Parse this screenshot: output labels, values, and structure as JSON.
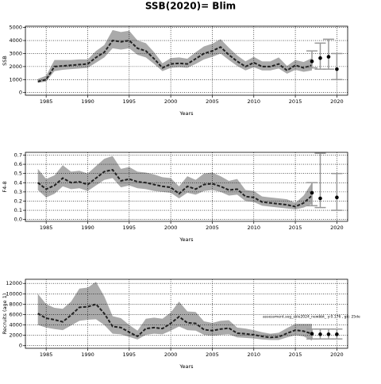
{
  "title": "SSB(2020)= Blim",
  "chart_data": [
    {
      "type": "line",
      "ylabel": "SSB",
      "xlabel": "Years",
      "grid": true,
      "band_color": "#aaaaaa",
      "line_color": "#222222",
      "forecast_color": "#999999",
      "xlim": [
        1982.5,
        2021.3
      ],
      "xticks": [
        1985,
        1990,
        1995,
        2000,
        2005,
        2010,
        2015,
        2020
      ],
      "ylim": [
        -200,
        5100
      ],
      "yticks": [
        0,
        1000,
        2000,
        3000,
        4000,
        5000
      ],
      "x": [
        1984,
        1985,
        1986,
        1987,
        1988,
        1989,
        1990,
        1991,
        1992,
        1993,
        1994,
        1995,
        1996,
        1997,
        1998,
        1999,
        2000,
        2001,
        2002,
        2003,
        2004,
        2005,
        2006,
        2007,
        2008,
        2009,
        2010,
        2011,
        2012,
        2013,
        2014,
        2015,
        2016,
        2017
      ],
      "values": [
        850,
        1000,
        2000,
        2050,
        2100,
        2150,
        2200,
        2700,
        3100,
        4000,
        3900,
        4000,
        3400,
        3200,
        2600,
        1900,
        2200,
        2250,
        2200,
        2600,
        3000,
        3200,
        3500,
        2900,
        2400,
        2000,
        2300,
        2000,
        2000,
        2200,
        1700,
        2100,
        1900,
        2100
      ],
      "lower": [
        750,
        850,
        1650,
        1750,
        1800,
        1850,
        1900,
        2300,
        2700,
        3400,
        3300,
        3400,
        2900,
        2700,
        2200,
        1650,
        1900,
        1950,
        1900,
        2200,
        2550,
        2750,
        3000,
        2500,
        2050,
        1700,
        1950,
        1700,
        1700,
        1850,
        1450,
        1750,
        1600,
        1700
      ],
      "upper": [
        1050,
        1300,
        2500,
        2500,
        2500,
        2550,
        2550,
        3200,
        3650,
        4800,
        4650,
        4750,
        4000,
        3800,
        3100,
        2250,
        2650,
        2700,
        2600,
        3100,
        3550,
        3750,
        4100,
        3450,
        2850,
        2400,
        2750,
        2400,
        2400,
        2700,
        2050,
        2500,
        2350,
        2650
      ],
      "forecast": {
        "x": [
          2017,
          2018,
          2019,
          2020
        ],
        "values": [
          2400,
          2650,
          2750,
          1800
        ],
        "lower": [
          1900,
          1800,
          1800,
          1000
        ],
        "upper": [
          3200,
          3800,
          4100,
          3000
        ]
      }
    },
    {
      "type": "line",
      "ylabel": "F4-8",
      "xlabel": "Years",
      "grid": true,
      "band_color": "#aaaaaa",
      "line_color": "#222222",
      "forecast_color": "#999999",
      "xlim": [
        1982.5,
        2021.3
      ],
      "xticks": [
        1985,
        1990,
        1995,
        2000,
        2005,
        2010,
        2015,
        2020
      ],
      "ylim": [
        -0.02,
        0.73
      ],
      "yticks": [
        {
          "value": 0,
          "label": "0.0"
        },
        {
          "value": 0.1,
          "label": "0.1"
        },
        {
          "value": 0.2,
          "label": "0.2"
        },
        {
          "value": 0.3,
          "label": "0.3"
        },
        {
          "value": 0.4,
          "label": "0.4"
        },
        {
          "value": 0.5,
          "label": "0.5"
        },
        {
          "value": 0.6,
          "label": "0.6"
        },
        {
          "value": 0.7,
          "label": "0.7"
        }
      ],
      "x": [
        1984,
        1985,
        1986,
        1987,
        1988,
        1989,
        1990,
        1991,
        1992,
        1993,
        1994,
        1995,
        1996,
        1997,
        1998,
        1999,
        2000,
        2001,
        2002,
        2003,
        2004,
        2005,
        2006,
        2007,
        2008,
        2009,
        2010,
        2011,
        2012,
        2013,
        2014,
        2015,
        2016,
        2017
      ],
      "values": [
        0.4,
        0.33,
        0.37,
        0.45,
        0.4,
        0.41,
        0.38,
        0.45,
        0.52,
        0.54,
        0.42,
        0.44,
        0.41,
        0.4,
        0.38,
        0.36,
        0.35,
        0.28,
        0.36,
        0.33,
        0.38,
        0.39,
        0.36,
        0.32,
        0.33,
        0.25,
        0.24,
        0.19,
        0.18,
        0.17,
        0.16,
        0.14,
        0.18,
        0.26
      ],
      "lower": [
        0.32,
        0.24,
        0.28,
        0.36,
        0.33,
        0.34,
        0.31,
        0.37,
        0.43,
        0.45,
        0.35,
        0.37,
        0.34,
        0.33,
        0.31,
        0.3,
        0.29,
        0.23,
        0.29,
        0.27,
        0.31,
        0.32,
        0.3,
        0.26,
        0.27,
        0.2,
        0.19,
        0.15,
        0.14,
        0.13,
        0.12,
        0.11,
        0.13,
        0.17
      ],
      "upper": [
        0.55,
        0.44,
        0.48,
        0.59,
        0.52,
        0.53,
        0.5,
        0.58,
        0.66,
        0.69,
        0.55,
        0.57,
        0.52,
        0.51,
        0.49,
        0.46,
        0.45,
        0.36,
        0.47,
        0.43,
        0.5,
        0.51,
        0.47,
        0.42,
        0.44,
        0.32,
        0.31,
        0.25,
        0.24,
        0.23,
        0.22,
        0.18,
        0.26,
        0.4
      ],
      "forecast": {
        "x": [
          2017,
          2018,
          2019,
          2020
        ],
        "values": [
          0.29,
          0.23,
          null,
          0.24
        ],
        "lower": [
          0.15,
          0.13,
          null,
          0.1
        ],
        "upper": [
          0.4,
          0.72,
          null,
          0.5
        ]
      }
    },
    {
      "type": "line",
      "ylabel": "Recruits (age 1)",
      "xlabel": "Years",
      "grid": true,
      "band_color": "#aaaaaa",
      "line_color": "#222222",
      "forecast_color": "#999999",
      "annotation": "assessment.seg_sole2024_newbbt_ y:0.176 , git: 25de",
      "xlim": [
        1982.5,
        2021.3
      ],
      "xticks": [
        1985,
        1990,
        1995,
        2000,
        2005,
        2010,
        2015,
        2020
      ],
      "ylim": [
        -500,
        12800
      ],
      "yticks": [
        0,
        2000,
        4000,
        6000,
        8000,
        10000,
        12000
      ],
      "x": [
        1984,
        1985,
        1986,
        1987,
        1988,
        1989,
        1990,
        1991,
        1992,
        1993,
        1994,
        1995,
        1996,
        1997,
        1998,
        1999,
        2000,
        2001,
        2002,
        2003,
        2004,
        2005,
        2006,
        2007,
        2008,
        2009,
        2010,
        2011,
        2012,
        2013,
        2014,
        2015,
        2016,
        2017
      ],
      "values": [
        6200,
        5300,
        5000,
        4600,
        5900,
        7400,
        7500,
        8000,
        6200,
        3700,
        3500,
        2600,
        1800,
        3300,
        3500,
        3300,
        4300,
        5600,
        4400,
        4300,
        3100,
        2900,
        3200,
        3400,
        2400,
        2300,
        2100,
        1800,
        1600,
        1700,
        2400,
        3000,
        2800,
        2300
      ],
      "lower": [
        4000,
        3500,
        3200,
        3000,
        3900,
        4800,
        5000,
        5100,
        4000,
        2300,
        2200,
        1700,
        1200,
        2100,
        2300,
        2200,
        2900,
        3700,
        3000,
        2900,
        2100,
        1900,
        2100,
        2200,
        1600,
        1500,
        1400,
        1200,
        1100,
        1100,
        1600,
        2000,
        1800,
        1000
      ],
      "upper": [
        10000,
        8000,
        7300,
        7100,
        8500,
        11000,
        11200,
        12300,
        9500,
        5700,
        5300,
        4000,
        2900,
        5200,
        5400,
        5200,
        6400,
        8500,
        6600,
        6500,
        4700,
        4400,
        4800,
        4900,
        3500,
        3300,
        3000,
        2600,
        2300,
        2500,
        3400,
        4200,
        4200,
        4200
      ],
      "forecast": {
        "x": [
          2017,
          2018,
          2019,
          2020
        ],
        "values": [
          2300,
          2200,
          2200,
          2200
        ],
        "lower": [
          1300,
          1300,
          1300,
          1300
        ],
        "upper": [
          3200,
          3200,
          3200,
          3200
        ]
      }
    }
  ]
}
